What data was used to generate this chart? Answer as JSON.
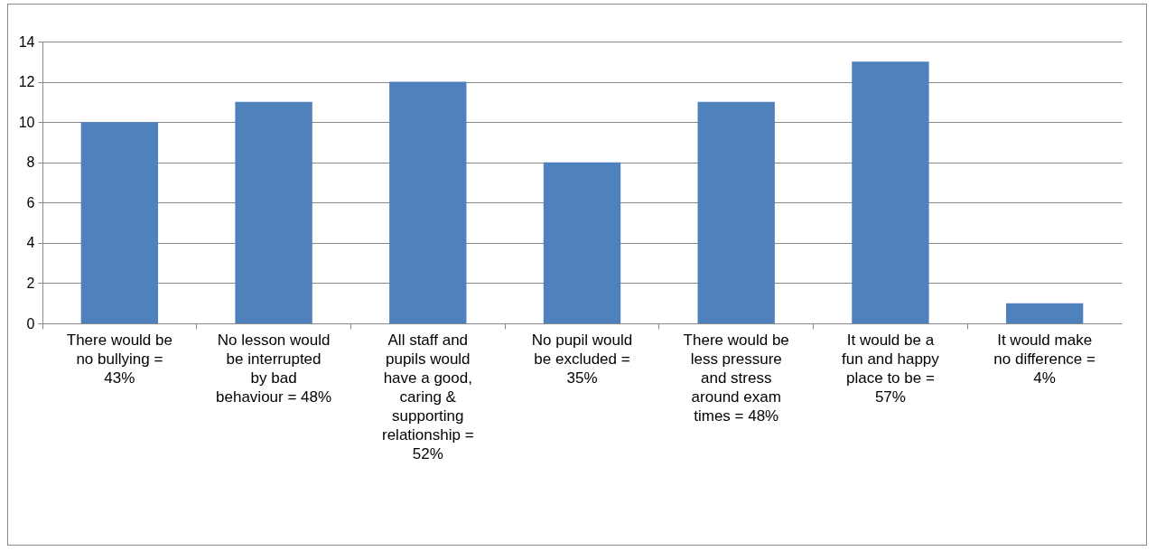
{
  "chart_data": {
    "type": "bar",
    "categories": [
      "There would be no bullying = 43%",
      "No lesson would be interrupted by bad behaviour = 48%",
      "All staff and pupils would have a good, caring & supporting relationship = 52%",
      "No pupil would be excluded = 35%",
      "There would be less pressure and stress around exam times = 48%",
      "It would be a fun and happy place to be = 57%",
      "It would make no difference = 4%"
    ],
    "values": [
      10,
      11,
      12,
      8,
      11,
      13,
      1
    ],
    "color": "#4f81bd",
    "ylim": [
      0,
      14
    ],
    "yticks": [
      0,
      2,
      4,
      6,
      8,
      10,
      12,
      14
    ],
    "grid": "y"
  }
}
